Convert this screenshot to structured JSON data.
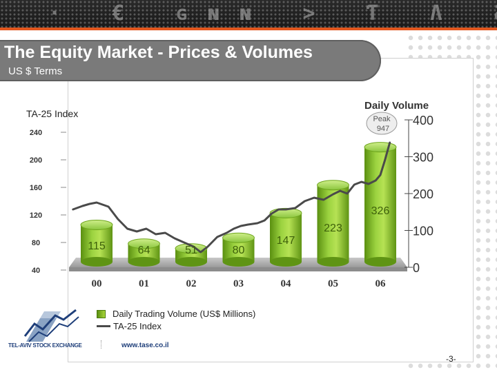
{
  "banner": {
    "ticker_glyphs": "· € ɢɴɴ > Ƭ Ʌ Ƨ Ɛ"
  },
  "header": {
    "title": "The Equity Market - Prices & Volumes",
    "subtitle": "US $ Terms"
  },
  "colors": {
    "accent_orange": "#e2571e",
    "bar_green": "#8cc63f",
    "bar_green_dark": "#5a8f10",
    "line_gray": "#4a4a4a",
    "title_pill": "#7a7a7a"
  },
  "chart_data": {
    "type": "bar",
    "left_axis_label": "TA-25 Index",
    "right_axis_label": "Daily Volume",
    "categories": [
      "00",
      "01",
      "02",
      "03",
      "04",
      "05",
      "06"
    ],
    "left_ticks": [
      "240",
      "200",
      "160",
      "120",
      "80",
      "40"
    ],
    "right_ticks": [
      "400",
      "300",
      "200",
      "100",
      "0"
    ],
    "left_ylim": [
      40,
      240
    ],
    "right_ylim": [
      0,
      400
    ],
    "series": [
      {
        "name": "Daily Trading Volume (US$ Millions)",
        "type": "bar",
        "axis": "right",
        "values": [
          115,
          64,
          51,
          80,
          147,
          223,
          326
        ]
      },
      {
        "name": "TA-25  Index",
        "type": "line",
        "axis": "left",
        "x": [
          -0.5,
          -0.3,
          -0.15,
          0,
          0.25,
          0.45,
          0.65,
          0.85,
          1.05,
          1.25,
          1.45,
          1.65,
          1.85,
          2.05,
          2.2,
          2.35,
          2.55,
          2.75,
          2.9,
          3.05,
          3.2,
          3.4,
          3.55,
          3.7,
          3.85,
          4.0,
          4.2,
          4.4,
          4.6,
          4.8,
          5.0,
          5.15,
          5.3,
          5.45,
          5.6,
          5.75,
          5.9,
          6.0,
          6.1,
          6.2
        ],
        "values": [
          128,
          133,
          136,
          138,
          132,
          114,
          100,
          96,
          100,
          92,
          94,
          86,
          80,
          74,
          66,
          74,
          88,
          94,
          100,
          104,
          106,
          108,
          112,
          122,
          128,
          128,
          130,
          140,
          145,
          142,
          150,
          155,
          151,
          164,
          168,
          165,
          170,
          178,
          200,
          225
        ]
      }
    ],
    "annotation": {
      "label": "Peak",
      "value": "947"
    }
  },
  "legend": {
    "volume_label": "Daily Trading Volume (US$ Millions)",
    "index_label": "TA-25  Index"
  },
  "footer": {
    "logo_text": "TEL-AVIV STOCK EXCHANGE",
    "url": "www.tase.co.il",
    "page_number": "-3-"
  }
}
